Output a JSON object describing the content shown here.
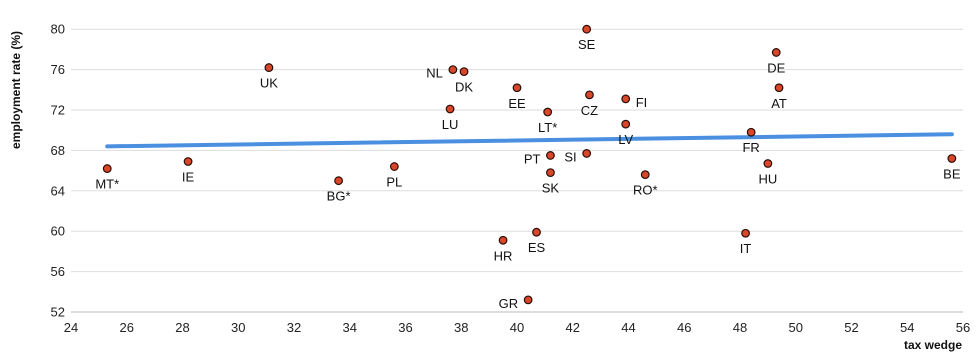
{
  "chart_data": {
    "type": "scatter",
    "title": "",
    "xlabel": "tax wedge",
    "ylabel": "employment rate (%)",
    "xlim": [
      24,
      56
    ],
    "ylim": [
      52,
      82
    ],
    "x_ticks": [
      24,
      26,
      28,
      30,
      32,
      34,
      36,
      38,
      40,
      42,
      44,
      46,
      48,
      50,
      52,
      54,
      56
    ],
    "y_ticks": [
      52,
      56,
      60,
      64,
      68,
      72,
      76,
      80
    ],
    "grid": {
      "horizontal": true,
      "vertical": false
    },
    "marker_color": "#d9472b",
    "marker_edge_color": "#2a0d06",
    "trend_color": "#4a8fe0",
    "gridline_color": "#dddddd",
    "trendline": {
      "x": [
        25.3,
        55.6
      ],
      "y": [
        68.4,
        69.6
      ]
    },
    "points": [
      {
        "label": "MT*",
        "x": 25.3,
        "y": 66.2,
        "pos": "below"
      },
      {
        "label": "IE",
        "x": 28.2,
        "y": 66.9,
        "pos": "below"
      },
      {
        "label": "UK",
        "x": 31.1,
        "y": 76.2,
        "pos": "below"
      },
      {
        "label": "BG*",
        "x": 33.6,
        "y": 65.0,
        "pos": "below"
      },
      {
        "label": "PL",
        "x": 35.6,
        "y": 66.4,
        "pos": "below"
      },
      {
        "label": "NL",
        "x": 37.7,
        "y": 76.0,
        "pos": "left"
      },
      {
        "label": "DK",
        "x": 38.1,
        "y": 75.8,
        "pos": "below"
      },
      {
        "label": "LU",
        "x": 37.6,
        "y": 72.1,
        "pos": "below"
      },
      {
        "label": "HR",
        "x": 39.5,
        "y": 59.1,
        "pos": "below"
      },
      {
        "label": "GR",
        "x": 40.4,
        "y": 53.2,
        "pos": "left"
      },
      {
        "label": "EE",
        "x": 40.0,
        "y": 74.2,
        "pos": "below"
      },
      {
        "label": "ES",
        "x": 40.7,
        "y": 59.9,
        "pos": "below"
      },
      {
        "label": "LT*",
        "x": 41.1,
        "y": 71.8,
        "pos": "below"
      },
      {
        "label": "PT",
        "x": 41.2,
        "y": 67.5,
        "pos": "left"
      },
      {
        "label": "SK",
        "x": 41.2,
        "y": 65.8,
        "pos": "below"
      },
      {
        "label": "SE",
        "x": 42.5,
        "y": 80.0,
        "pos": "below"
      },
      {
        "label": "CZ",
        "x": 42.6,
        "y": 73.5,
        "pos": "below"
      },
      {
        "label": "SI",
        "x": 42.5,
        "y": 67.7,
        "pos": "left"
      },
      {
        "label": "FI",
        "x": 43.9,
        "y": 73.1,
        "pos": "right"
      },
      {
        "label": "LV",
        "x": 43.9,
        "y": 70.6,
        "pos": "below"
      },
      {
        "label": "RO*",
        "x": 44.6,
        "y": 65.6,
        "pos": "below"
      },
      {
        "label": "IT",
        "x": 48.2,
        "y": 59.8,
        "pos": "below"
      },
      {
        "label": "FR",
        "x": 48.4,
        "y": 69.8,
        "pos": "below"
      },
      {
        "label": "DE",
        "x": 49.3,
        "y": 77.7,
        "pos": "below"
      },
      {
        "label": "AT",
        "x": 49.4,
        "y": 74.2,
        "pos": "below"
      },
      {
        "label": "HU",
        "x": 49.0,
        "y": 66.7,
        "pos": "below"
      },
      {
        "label": "BE",
        "x": 55.6,
        "y": 67.2,
        "pos": "below"
      }
    ]
  }
}
